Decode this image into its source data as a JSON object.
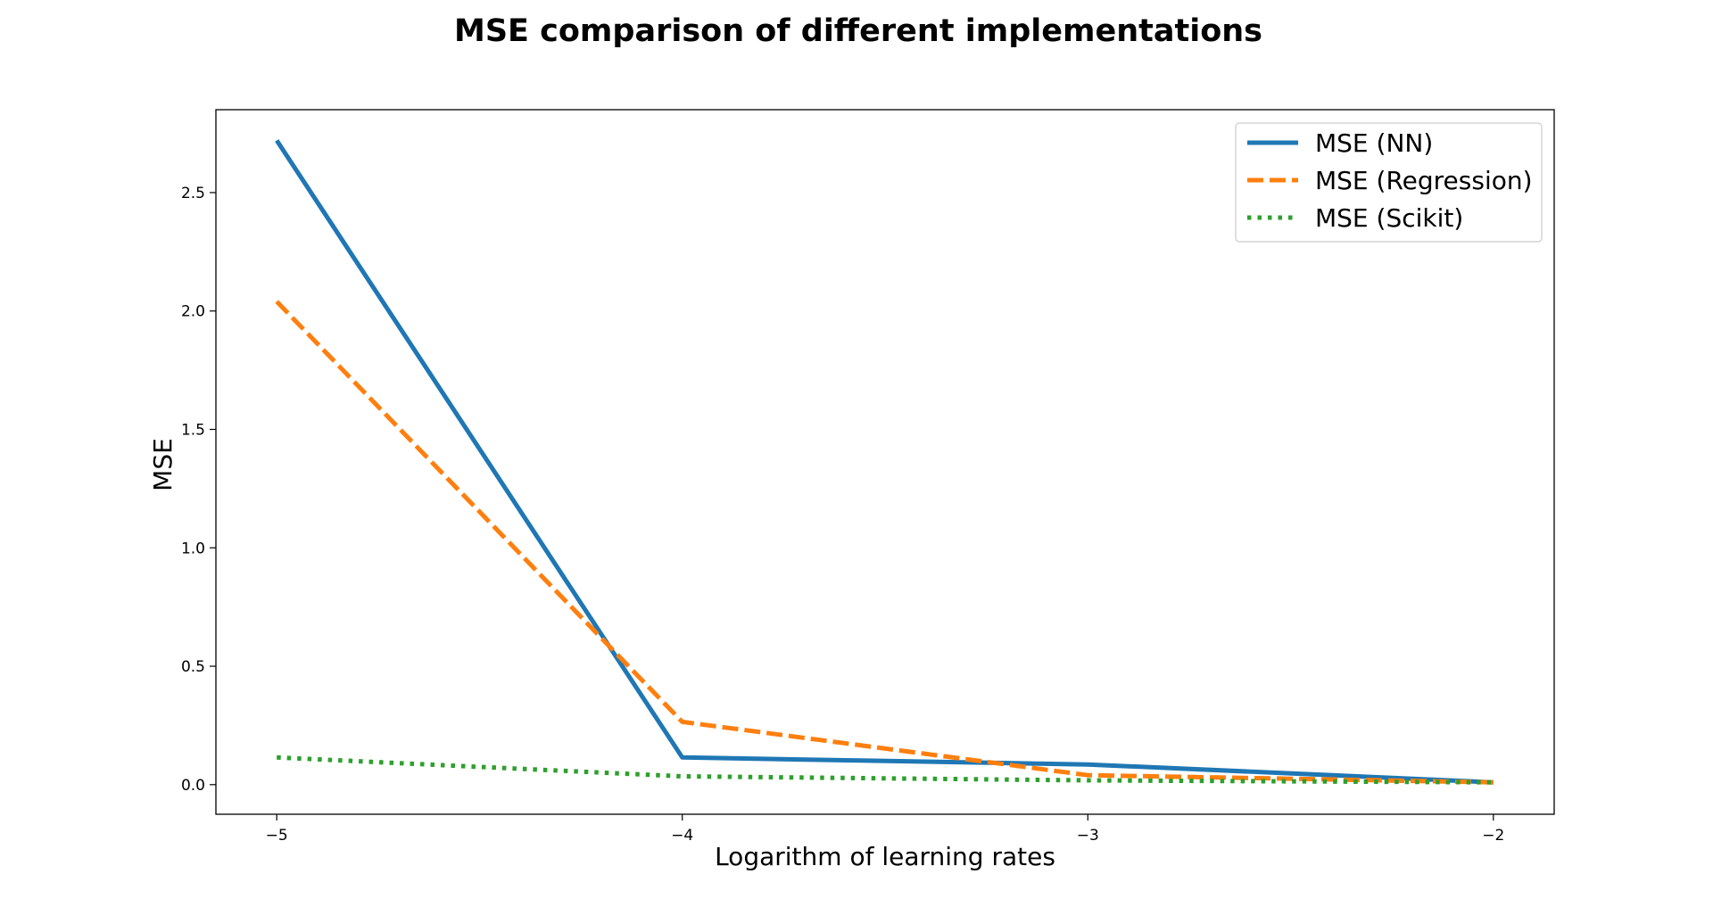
{
  "chart_data": {
    "type": "line",
    "title": "MSE comparison of different implementations",
    "xlabel": "Logarithm of learning rates",
    "ylabel": "MSE",
    "x": [
      -5,
      -4,
      -3,
      -2
    ],
    "xticks": [
      -5,
      -4,
      -3,
      -2
    ],
    "xtick_labels": [
      "−5",
      "−4",
      "−3",
      "−2"
    ],
    "yticks": [
      0.0,
      0.5,
      1.0,
      1.5,
      2.0,
      2.5
    ],
    "ytick_labels": [
      "0.0",
      "0.5",
      "1.0",
      "1.5",
      "2.0",
      "2.5"
    ],
    "xlim": [
      -5.15,
      -1.85
    ],
    "ylim": [
      -0.125,
      2.85
    ],
    "grid": false,
    "legend_position": "top-right",
    "series": [
      {
        "name": "MSE (NN)",
        "values": [
          2.72,
          0.115,
          0.085,
          0.01
        ],
        "color": "#1f77b4",
        "style": "solid"
      },
      {
        "name": "MSE (Regression)",
        "values": [
          2.04,
          0.265,
          0.04,
          0.01
        ],
        "color": "#ff7f0e",
        "style": "dashed"
      },
      {
        "name": "MSE (Scikit)",
        "values": [
          0.115,
          0.035,
          0.018,
          0.01
        ],
        "color": "#2ca02c",
        "style": "dotted"
      }
    ]
  }
}
